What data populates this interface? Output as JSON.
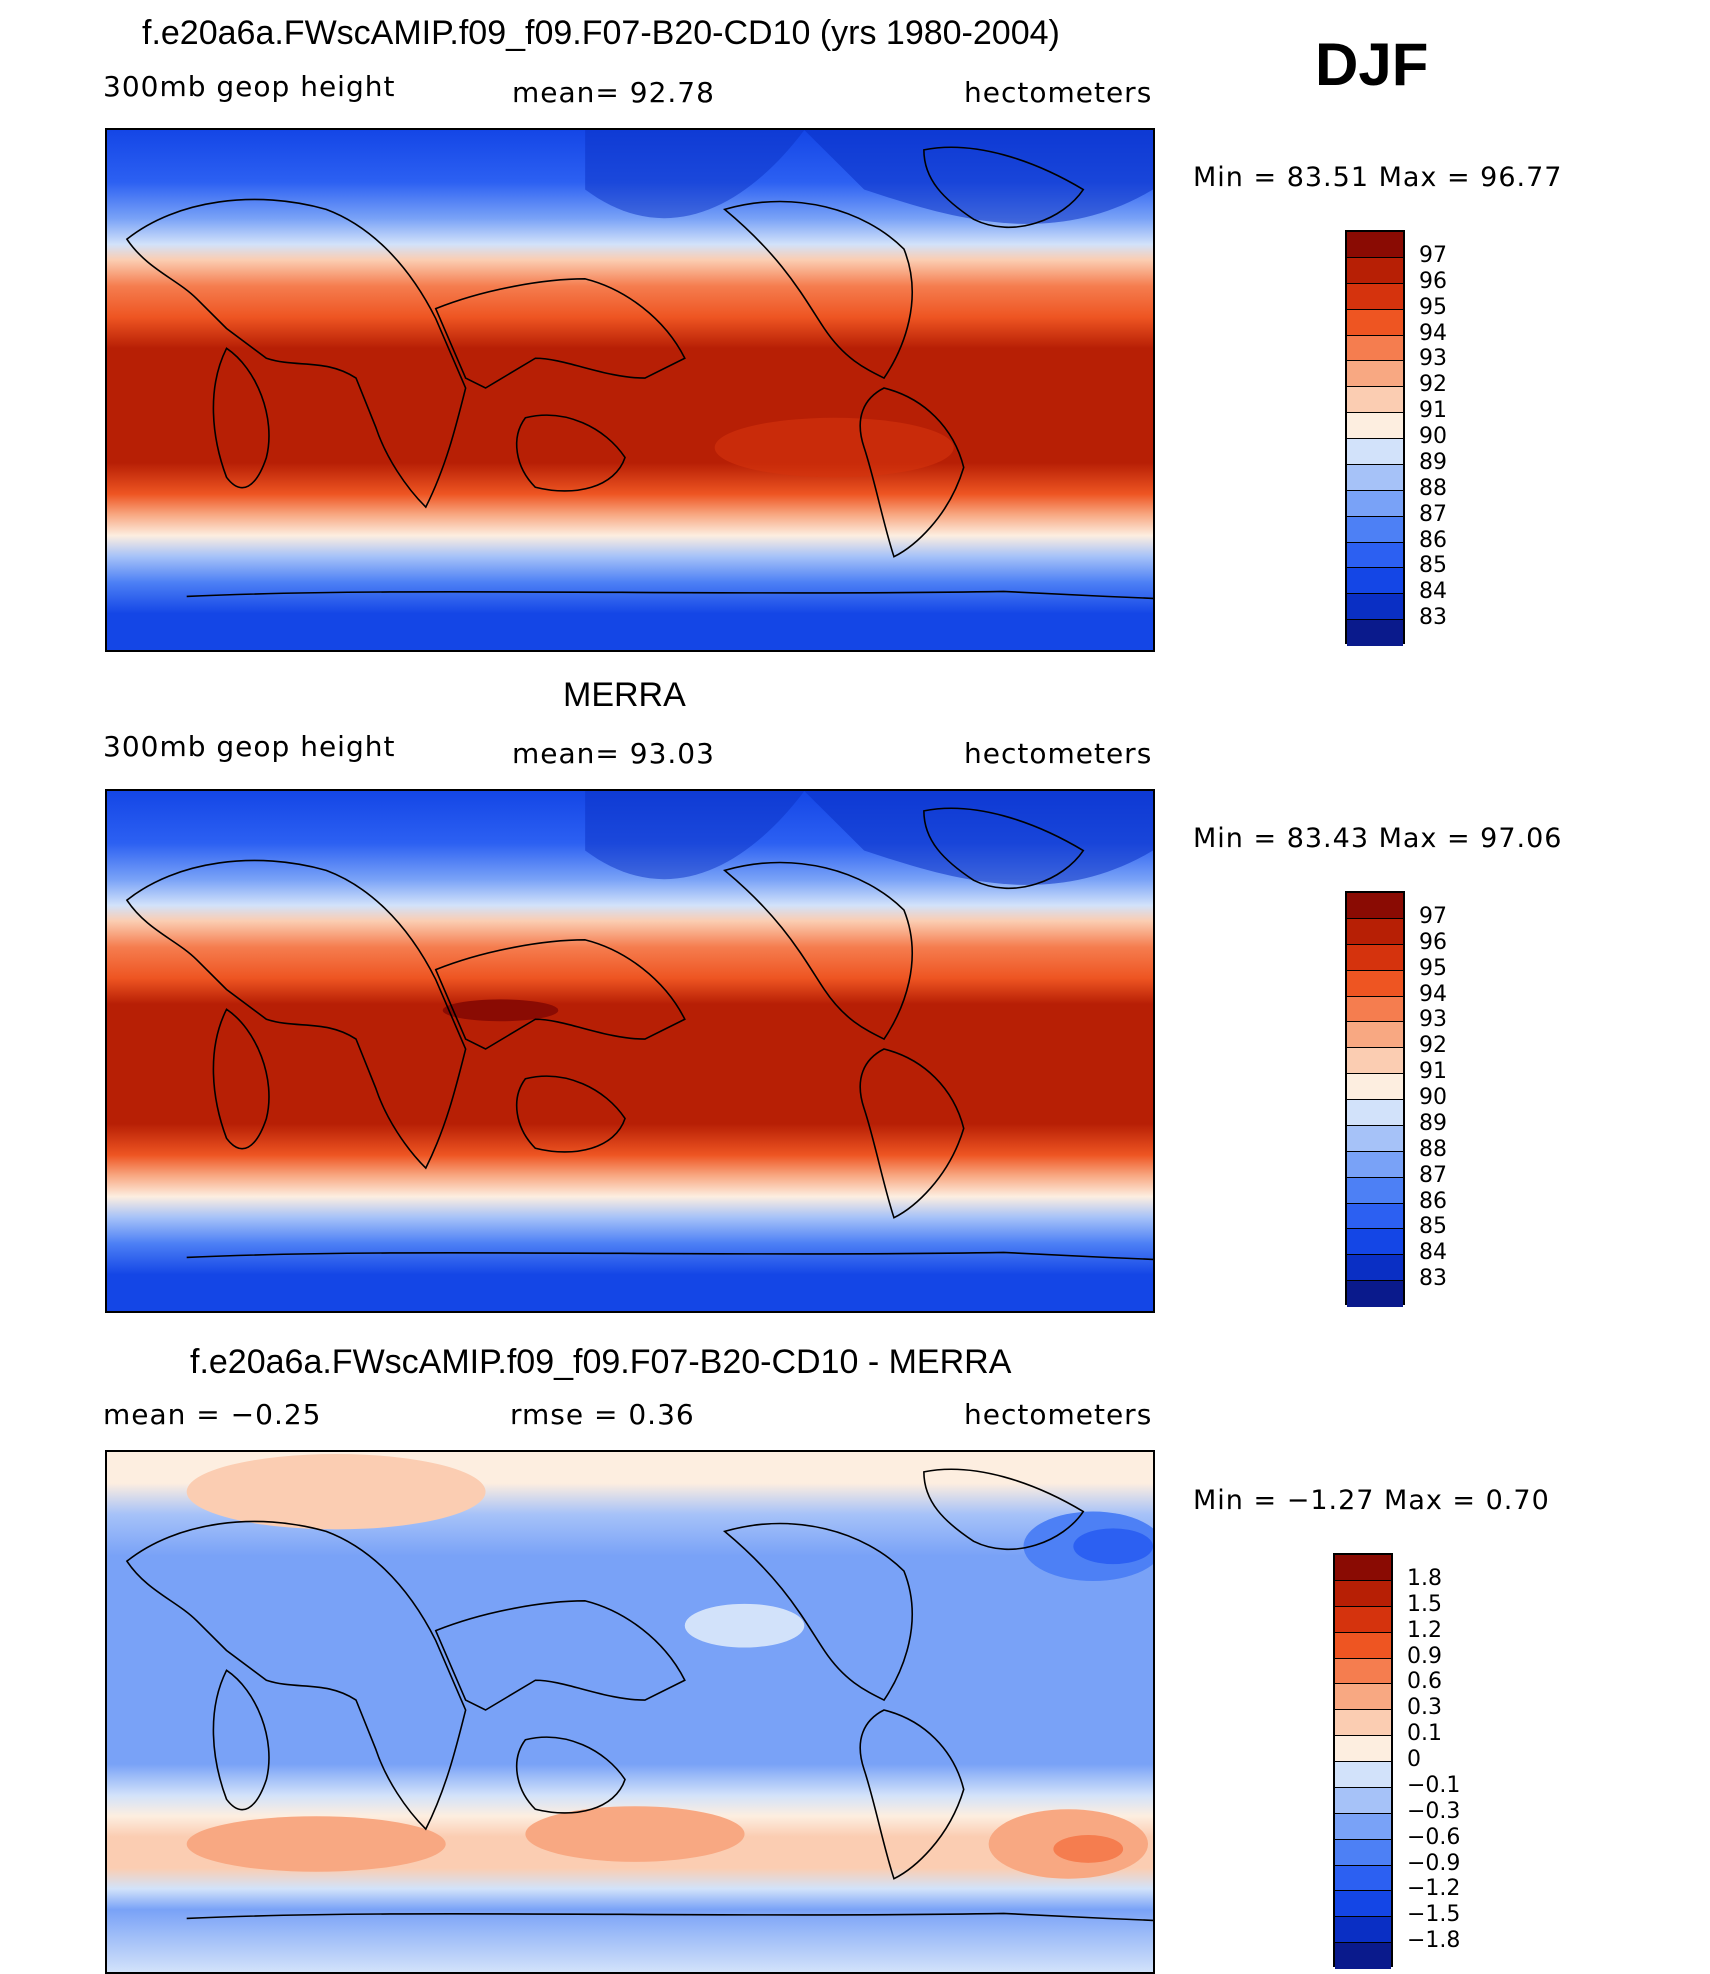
{
  "season": "DJF",
  "panels": [
    {
      "title": "f.e20a6a.FWscAMIP.f09_f09.F07-B20-CD10 (yrs 1980-2004)",
      "left_label": "300mb  geop  height",
      "mid_label": "mean=   92.78",
      "right_label": "hectometers",
      "minmax": "Min  =    83.51  Max  =    96.77",
      "colorbar_labels": [
        "97",
        "96",
        "95",
        "94",
        "93",
        "92",
        "91",
        "90",
        "89",
        "88",
        "87",
        "86",
        "85",
        "84",
        "83"
      ]
    },
    {
      "title": "MERRA",
      "left_label": "300mb  geop  height",
      "mid_label": "mean=   93.03",
      "right_label": "hectometers",
      "minmax": "Min  =    83.43  Max  =    97.06",
      "colorbar_labels": [
        "97",
        "96",
        "95",
        "94",
        "93",
        "92",
        "91",
        "90",
        "89",
        "88",
        "87",
        "86",
        "85",
        "84",
        "83"
      ]
    },
    {
      "title": "f.e20a6a.FWscAMIP.f09_f09.F07-B20-CD10 - MERRA",
      "left_label": "mean  =    −0.25",
      "mid_label": "rmse  =     0.36",
      "right_label": "hectometers",
      "minmax": "Min  =    −1.27  Max  =      0.70",
      "colorbar_labels": [
        "1.8",
        "1.5",
        "1.2",
        "0.9",
        "0.6",
        "0.3",
        "0.1",
        "0",
        "−0.1",
        "−0.3",
        "−0.6",
        "−0.9",
        "−1.2",
        "−1.5",
        "−1.8"
      ]
    }
  ],
  "palette": [
    "#0a1a8c",
    "#0a2fc4",
    "#1446e6",
    "#2c60f2",
    "#4d80f5",
    "#79a2f7",
    "#a6c2f8",
    "#d2e2fa",
    "#fdeee0",
    "#fbcdb2",
    "#f8a882",
    "#f57d4f",
    "#ee5522",
    "#d5330d",
    "#b71f05",
    "#8a0b03"
  ]
}
